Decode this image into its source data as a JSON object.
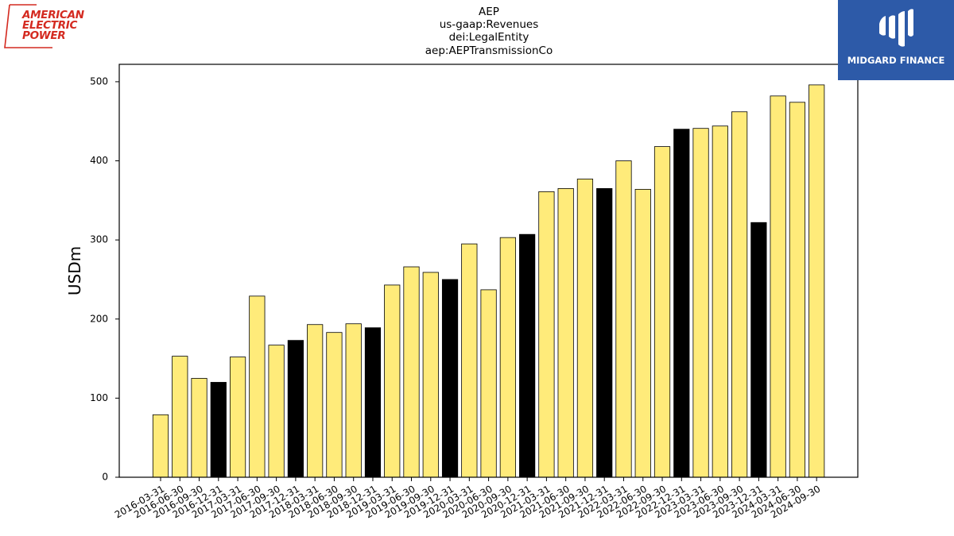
{
  "title_lines": [
    "AEP",
    "us-gaap:Revenues",
    "dei:LegalEntity",
    "aep:AEPTransmissionCo"
  ],
  "logos": {
    "left": {
      "lines": [
        "AMERICAN",
        "ELECTRIC",
        "POWER"
      ],
      "color": "#d42a20"
    },
    "right": {
      "name": "MIDGARD FINANCE",
      "background": "#2d5aa8",
      "text_color": "#ffffff",
      "icon": "midgard-mark-icon"
    }
  },
  "chart_data": {
    "type": "bar",
    "title": "",
    "xlabel": "",
    "ylabel": "USDm",
    "ylim": [
      0,
      522
    ],
    "yticks": [
      0,
      100,
      200,
      300,
      400,
      500
    ],
    "grid": false,
    "colors": {
      "quarter": "#ffeb7a",
      "year_end": "#000000",
      "edge": "#000000"
    },
    "categories": [
      "2016-03-31",
      "2016-06-30",
      "2016-09-30",
      "2016-12-31",
      "2017-03-31",
      "2017-06-30",
      "2017-09-30",
      "2017-12-31",
      "2018-03-31",
      "2018-06-30",
      "2018-09-30",
      "2018-12-31",
      "2019-03-31",
      "2019-06-30",
      "2019-09-30",
      "2019-12-31",
      "2020-03-31",
      "2020-06-30",
      "2020-09-30",
      "2020-12-31",
      "2021-03-31",
      "2021-06-30",
      "2021-09-30",
      "2021-12-31",
      "2022-03-31",
      "2022-06-30",
      "2022-09-30",
      "2022-12-31",
      "2023-03-31",
      "2023-06-30",
      "2023-09-30",
      "2023-12-31",
      "2024-03-31",
      "2024-06-30",
      "2024-09-30"
    ],
    "values": [
      79,
      153,
      125,
      120,
      152,
      229,
      167,
      173,
      193,
      183,
      194,
      189,
      243,
      266,
      259,
      250,
      295,
      237,
      303,
      307,
      361,
      365,
      377,
      365,
      400,
      364,
      418,
      440,
      441,
      444,
      462,
      322,
      482,
      474,
      496
    ]
  }
}
